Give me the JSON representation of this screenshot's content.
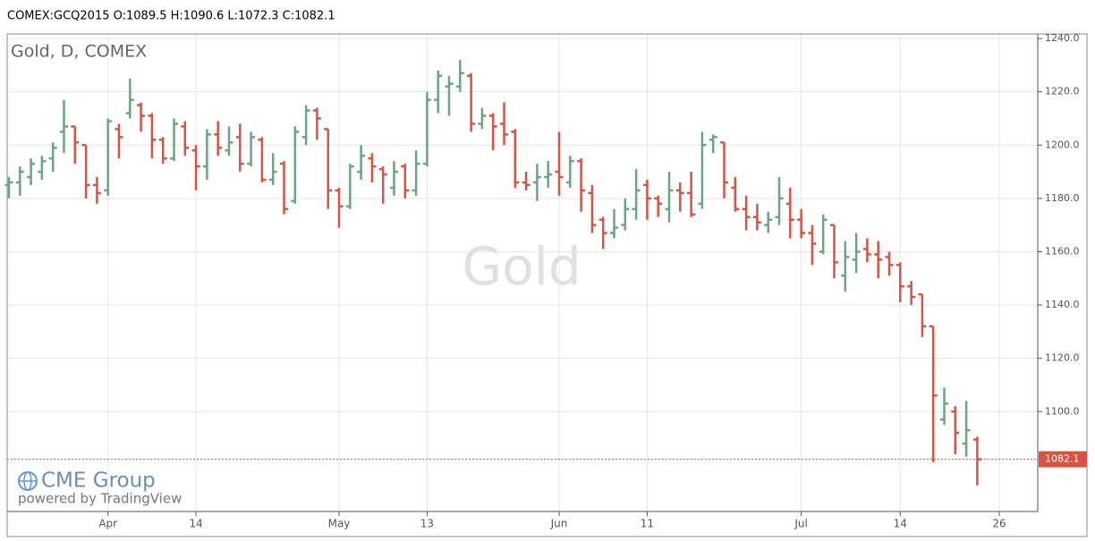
{
  "header": "COMEX:GCQ2015 O:1089.5 H:1090.6 L:1072.3 C:1082.1",
  "chart_data": {
    "type": "ohlc",
    "title": "Gold, D, COMEX",
    "watermark": "Gold",
    "logo": "CME Group",
    "credit": "powered by TradingView",
    "categories": [
      null,
      null,
      null,
      null,
      null,
      null,
      null,
      null,
      null,
      "Apr",
      null,
      null,
      null,
      null,
      null,
      null,
      null,
      "14",
      null,
      null,
      null,
      null,
      null,
      null,
      null,
      null,
      null,
      null,
      null,
      null,
      "May",
      null,
      null,
      null,
      null,
      null,
      null,
      null,
      "13",
      null,
      null,
      null,
      null,
      null,
      null,
      null,
      null,
      null,
      null,
      null,
      "Jun",
      null,
      null,
      null,
      null,
      null,
      null,
      null,
      "11",
      null,
      null,
      null,
      null,
      null,
      null,
      null,
      null,
      null,
      null,
      null,
      null,
      null,
      "Jul",
      null,
      null,
      null,
      null,
      null,
      null,
      null,
      null,
      "14",
      null,
      null,
      null,
      null,
      null,
      null,
      null,
      null,
      "26"
    ],
    "open": [
      1185,
      1186,
      1188,
      1190,
      1195,
      1205,
      1207,
      1200,
      1185,
      1183,
      1206,
      1212,
      1215,
      1211,
      1202,
      1195,
      1207,
      1198,
      1192,
      1204,
      1198,
      1203,
      1193,
      1202,
      1187,
      1193,
      1179,
      1203,
      1213,
      1206,
      1183,
      1177,
      1190,
      1195,
      1191,
      1184,
      1192,
      1183,
      1193,
      1217,
      1222,
      1222,
      1226,
      1208,
      1211,
      1208,
      1205,
      1186,
      1186,
      1188,
      1190,
      1186,
      1194,
      1182,
      1172,
      1167,
      1170,
      1176,
      1185,
      1180,
      1176,
      1183,
      1182,
      1178,
      1202,
      1201,
      1184,
      1176,
      1173,
      1170,
      1173,
      1178,
      1172,
      1167,
      1160,
      1170,
      1151,
      1157,
      1161,
      1159,
      1158,
      1155,
      1147,
      1144,
      1132,
      1097,
      1100,
      1088,
      1089.5,
      null,
      null
    ],
    "high": [
      1188,
      1192,
      1195,
      1196,
      1201,
      1217,
      1207,
      1200,
      1188,
      1210,
      1208,
      1225,
      1216,
      1212,
      1203,
      1210,
      1209,
      1200,
      1206,
      1209,
      1207,
      1208,
      1205,
      1203,
      1197,
      1194,
      1207,
      1215,
      1214,
      1206,
      1184,
      1193,
      1200,
      1197,
      1192,
      1194,
      1193,
      1198,
      1220,
      1228,
      1226,
      1232,
      1227,
      1214,
      1212,
      1216,
      1206,
      1190,
      1193,
      1194,
      1205,
      1196,
      1195,
      1185,
      1173,
      1176,
      1180,
      1191,
      1187,
      1181,
      1190,
      1186,
      1190,
      1205,
      1204,
      1201,
      1188,
      1181,
      1178,
      1175,
      1188,
      1184,
      1176,
      1170,
      1174,
      1170,
      1164,
      1167,
      1165,
      1164,
      1160,
      1156,
      1149,
      1144,
      1132,
      1109,
      1102,
      1104,
      1090.6,
      null,
      null
    ],
    "low": [
      1180,
      1181,
      1185,
      1187,
      1190,
      1197,
      1193,
      1180,
      1178,
      1181,
      1195,
      1210,
      1205,
      1195,
      1193,
      1194,
      1196,
      1183,
      1187,
      1196,
      1196,
      1190,
      1192,
      1186,
      1185,
      1174,
      1178,
      1200,
      1202,
      1176,
      1169,
      1176,
      1187,
      1186,
      1178,
      1181,
      1180,
      1181,
      1192,
      1212,
      1211,
      1220,
      1205,
      1206,
      1198,
      1200,
      1184,
      1183,
      1179,
      1184,
      1181,
      1184,
      1175,
      1167,
      1161,
      1165,
      1168,
      1172,
      1172,
      1173,
      1171,
      1175,
      1173,
      1176,
      1197,
      1180,
      1175,
      1168,
      1168,
      1167,
      1170,
      1165,
      1165,
      1155,
      1159,
      1150,
      1145,
      1152,
      1156,
      1150,
      1151,
      1141,
      1140,
      1128,
      1081,
      1095,
      1084,
      1083,
      1072.3,
      null,
      null
    ],
    "close": [
      1186,
      1190,
      1193,
      1194,
      1199,
      1207,
      1201,
      1185,
      1182,
      1209,
      1203,
      1217,
      1211,
      1202,
      1195,
      1208,
      1199,
      1192,
      1204,
      1199,
      1201,
      1193,
      1203,
      1187,
      1190,
      1176,
      1205,
      1213,
      1210,
      1183,
      1177,
      1192,
      1196,
      1192,
      1189,
      1190,
      1183,
      1193,
      1217,
      1226,
      1223,
      1227,
      1208,
      1211,
      1207,
      1204,
      1186,
      1185,
      1188,
      1189,
      1188,
      1194,
      1183,
      1170,
      1167,
      1169,
      1176,
      1183,
      1180,
      1178,
      1183,
      1182,
      1174,
      1200,
      1203,
      1186,
      1176,
      1173,
      1171,
      1172,
      1180,
      1172,
      1167,
      1163,
      1172,
      1156,
      1158,
      1160,
      1159,
      1157,
      1155,
      1147,
      1143,
      1132,
      1106,
      1103,
      1092,
      1093,
      1082.1,
      null,
      null
    ],
    "up_color": "#6ba583",
    "down_color": "#d75442",
    "last_price": 1082.1,
    "ylim": [
      1062.5,
      1241.7
    ],
    "yticks": [
      {
        "value": 1100,
        "label": "1100.0"
      },
      {
        "value": 1120,
        "label": "1120.0"
      },
      {
        "value": 1140,
        "label": "1140.0"
      },
      {
        "value": 1160,
        "label": "1160.0"
      },
      {
        "value": 1180,
        "label": "1180.0"
      },
      {
        "value": 1200,
        "label": "1200.0"
      },
      {
        "value": 1220,
        "label": "1220.0"
      },
      {
        "value": 1240,
        "label": "1240.0"
      }
    ],
    "grid": true
  }
}
